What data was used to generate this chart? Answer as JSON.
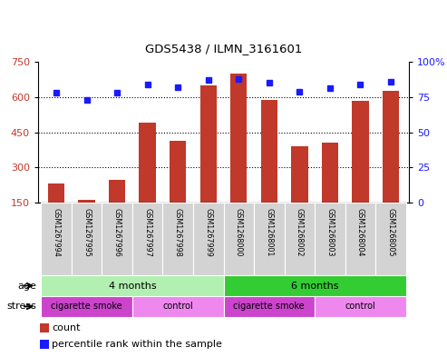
{
  "title": "GDS5438 / ILMN_3161601",
  "samples": [
    "GSM1267994",
    "GSM1267995",
    "GSM1267996",
    "GSM1267997",
    "GSM1267998",
    "GSM1267999",
    "GSM1268000",
    "GSM1268001",
    "GSM1268002",
    "GSM1268003",
    "GSM1268004",
    "GSM1268005"
  ],
  "counts": [
    230,
    163,
    248,
    490,
    415,
    650,
    700,
    588,
    390,
    405,
    585,
    625
  ],
  "percentile_ranks": [
    78,
    73,
    78,
    84,
    82,
    87,
    88,
    85,
    79,
    81,
    84,
    86
  ],
  "ylim_left": [
    150,
    750
  ],
  "ylim_right": [
    0,
    100
  ],
  "yticks_left": [
    150,
    300,
    450,
    600,
    750
  ],
  "yticks_right": [
    0,
    25,
    50,
    75,
    100
  ],
  "bar_color": "#C0392B",
  "dot_color": "#1a1aff",
  "sample_box_color": "#D3D3D3",
  "age_4_color": "#b2f0b2",
  "age_6_color": "#33cc33",
  "stress_smoke_color": "#cc44cc",
  "stress_control_color": "#ee88ee",
  "age_groups": [
    {
      "label": "4 months",
      "start": 0,
      "end": 5
    },
    {
      "label": "6 months",
      "start": 6,
      "end": 11
    }
  ],
  "stress_groups": [
    {
      "label": "cigarette smoke",
      "start": 0,
      "end": 2,
      "color": "#cc44cc"
    },
    {
      "label": "control",
      "start": 3,
      "end": 5,
      "color": "#ee88ee"
    },
    {
      "label": "cigarette smoke",
      "start": 6,
      "end": 8,
      "color": "#cc44cc"
    },
    {
      "label": "control",
      "start": 9,
      "end": 11,
      "color": "#ee88ee"
    }
  ],
  "legend_count_label": "count",
  "legend_percentile_label": "percentile rank within the sample",
  "grid_lines": [
    300,
    450,
    600
  ],
  "dotted_line_at": 600
}
